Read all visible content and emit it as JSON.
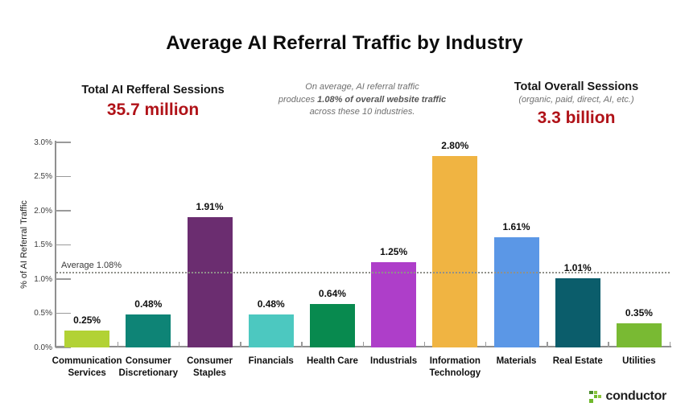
{
  "header": {
    "title": "Average AI Referral Traffic by Industry",
    "left_stat": {
      "label": "Total AI Refferal Sessions",
      "value": "35.7 million"
    },
    "note": {
      "line1": "On average, AI referral traffic",
      "pre": "produces ",
      "bold": "1.08% of overall website traffic",
      "post": " across these 10 industries."
    },
    "right_stat": {
      "label": "Total Overall Sessions",
      "sublabel": "(organic, paid, direct, AI, etc.)",
      "value": "3.3 billion"
    }
  },
  "colors": {
    "accent_red": "#b01218",
    "brand_green": "#8dc63f",
    "axis_gray": "#8f8f8f"
  },
  "chart_data": {
    "type": "bar",
    "title": "Average AI Referral Traffic by Industry",
    "xlabel": "",
    "ylabel": "% of AI Referral Traffic",
    "ylim": [
      0,
      3.0
    ],
    "y_ticks": [
      "0.0%",
      "0.5%",
      "1.0%",
      "1.5%",
      "2.0%",
      "2.5%",
      "3.0%"
    ],
    "grid": false,
    "legend": "none",
    "categories": [
      "Communication\nServices",
      "Consumer\nDiscretionary",
      "Consumer\nStaples",
      "Financials",
      "Health Care",
      "Industrials",
      "Information\nTechnology",
      "Materials",
      "Real Estate",
      "Utilities"
    ],
    "values": [
      0.25,
      0.48,
      1.91,
      0.48,
      0.64,
      1.25,
      2.8,
      1.61,
      1.01,
      0.35
    ],
    "value_labels": [
      "0.25%",
      "0.48%",
      "1.91%",
      "0.48%",
      "0.64%",
      "1.25%",
      "2.80%",
      "1.61%",
      "1.01%",
      "0.35%"
    ],
    "colors": [
      "#b2d235",
      "#0e8476",
      "#6b2d70",
      "#4cc8c0",
      "#088a4f",
      "#ae3ec9",
      "#f0b442",
      "#5b97e6",
      "#0b5d6b",
      "#79ba33"
    ],
    "average": {
      "value": 1.08,
      "label": "Average 1.08%"
    }
  },
  "footer": {
    "brand": "conductor"
  }
}
